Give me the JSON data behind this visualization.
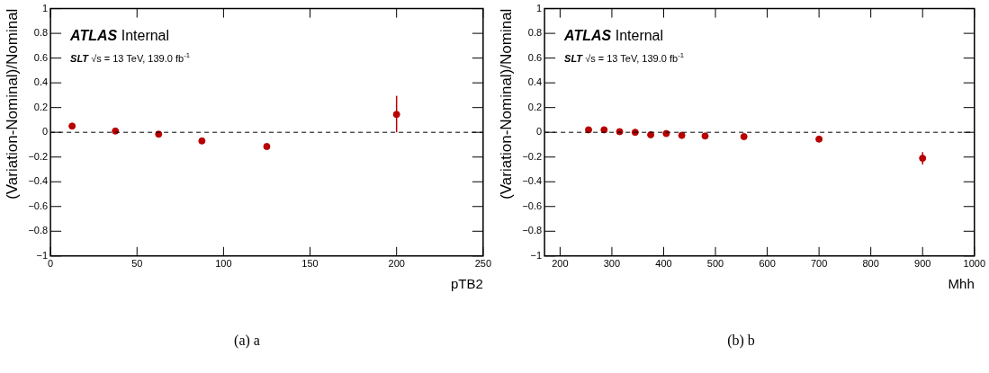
{
  "chart_data": [
    {
      "type": "scatter",
      "xlabel": "pTB2",
      "ylabel": "(Variation-Nominal)/Nominal",
      "annotations": [
        "ATLAS Internal",
        "SLT √s = 13 TeV, 139.0 fb$^{-1}$",
        "(a) a"
      ],
      "series": [
        {
          "color": "#b80000",
          "x": [
            12.5,
            37.5,
            62.5,
            87.5,
            125,
            200
          ],
          "values": [
            0.05,
            0.01,
            -0.015,
            -0.07,
            -0.115,
            0.145
          ],
          "errors": [
            null,
            null,
            null,
            null,
            0.02,
            [
              0,
              0.295
            ]
          ]
        }
      ],
      "xlim": [
        0,
        250
      ],
      "xticks": [
        0,
        50,
        100,
        150,
        200,
        250
      ],
      "ylim": [
        -1,
        1
      ],
      "yticks": [
        -1,
        -0.8,
        -0.6,
        -0.4,
        -0.2,
        0,
        0.2,
        0.4,
        0.6,
        0.8,
        1
      ],
      "ref_lines": [
        {
          "axis": "y",
          "value": 0,
          "line_style": "dashed"
        }
      ],
      "marker": "circle",
      "legend": false,
      "grid": false
    },
    {
      "type": "scatter",
      "xlabel": "Mhh",
      "ylabel": "(Variation-Nominal)/Nominal",
      "annotations": [
        "ATLAS Internal",
        "SLT √s = 13 TeV, 139.0 fb$^{-1}$",
        "(b) b"
      ],
      "series": [
        {
          "color": "#b80000",
          "x": [
            255,
            285,
            315,
            345,
            375,
            405,
            435,
            480,
            555,
            700,
            900
          ],
          "values": [
            0.02,
            0.02,
            0.005,
            0,
            -0.02,
            -0.01,
            -0.025,
            -0.03,
            -0.035,
            -0.055,
            -0.21
          ],
          "errors": [
            null,
            null,
            null,
            null,
            null,
            null,
            null,
            null,
            null,
            null,
            0.05
          ]
        }
      ],
      "xlim": [
        170,
        1000
      ],
      "xticks": [
        200,
        300,
        400,
        500,
        600,
        700,
        800,
        900,
        1000
      ],
      "ylim": [
        -1,
        1
      ],
      "yticks": [
        -1,
        -0.8,
        -0.6,
        -0.4,
        -0.2,
        0,
        0.2,
        0.4,
        0.6,
        0.8,
        1
      ],
      "ref_lines": [
        {
          "axis": "y",
          "value": 0,
          "line_style": "dashed"
        }
      ],
      "marker": "circle",
      "legend": false,
      "grid": false
    }
  ]
}
